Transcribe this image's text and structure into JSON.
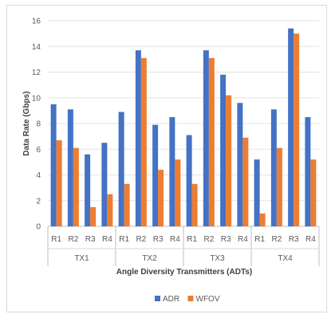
{
  "chart_data": {
    "type": "bar",
    "title": "",
    "xlabel": "Angle Diversity Transmitters (ADTs)",
    "ylabel": "Data Rate (Gbps)",
    "ylim": [
      0,
      16
    ],
    "yticks": [
      0,
      2,
      4,
      6,
      8,
      10,
      12,
      14,
      16
    ],
    "grid": "horizontal",
    "legend_position": "bottom",
    "groups": [
      "TX1",
      "TX2",
      "TX3",
      "TX4"
    ],
    "categories": [
      "R1",
      "R2",
      "R3",
      "R4",
      "R1",
      "R2",
      "R3",
      "R4",
      "R1",
      "R2",
      "R3",
      "R4",
      "R1",
      "R2",
      "R3",
      "R4"
    ],
    "series": [
      {
        "name": "ADR",
        "color": "#4472c4",
        "values": [
          9.5,
          9.1,
          5.6,
          6.5,
          8.9,
          13.7,
          7.9,
          8.5,
          7.1,
          13.7,
          11.8,
          9.6,
          5.2,
          9.1,
          15.4,
          8.5
        ]
      },
      {
        "name": "WFOV",
        "color": "#ed7d31",
        "values": [
          6.7,
          6.1,
          1.5,
          2.5,
          3.3,
          13.1,
          4.4,
          5.2,
          3.3,
          13.1,
          10.2,
          6.9,
          1.0,
          6.1,
          15.0,
          5.2
        ]
      }
    ]
  }
}
